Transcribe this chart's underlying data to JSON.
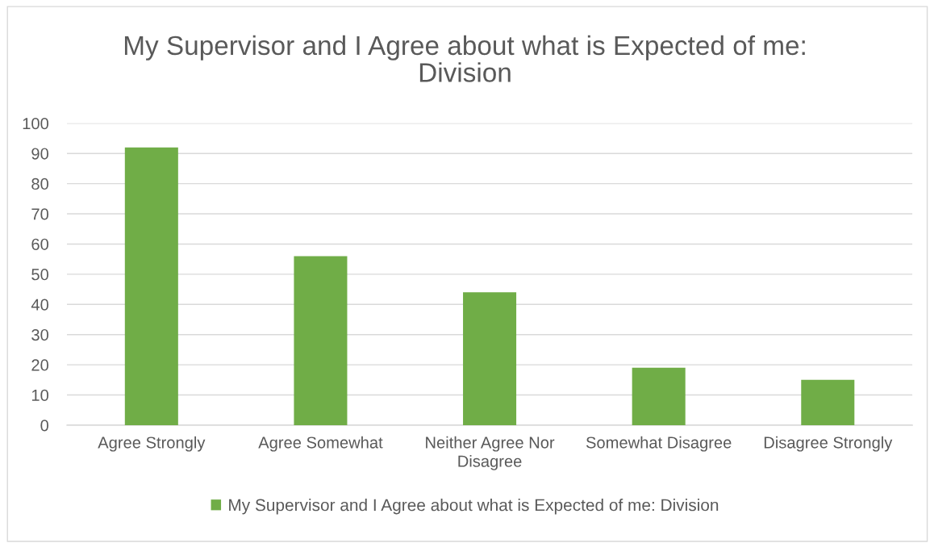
{
  "chart_data": {
    "type": "bar",
    "title": "My Supervisor and I Agree about what is Expected of me:\nDivision",
    "categories": [
      "Agree Strongly",
      "Agree Somewhat",
      "Neither Agree Nor\nDisagree",
      "Somewhat Disagree",
      "Disagree Strongly"
    ],
    "series": [
      {
        "name": "My Supervisor and I Agree about what is Expected of me: Division",
        "color": "#70ad47",
        "values": [
          92,
          56,
          44,
          19,
          15
        ]
      }
    ],
    "ylim": [
      0,
      100
    ],
    "yticks": [
      0,
      10,
      20,
      30,
      40,
      50,
      60,
      70,
      80,
      90,
      100
    ],
    "grid": "y",
    "legend": "bottom"
  }
}
